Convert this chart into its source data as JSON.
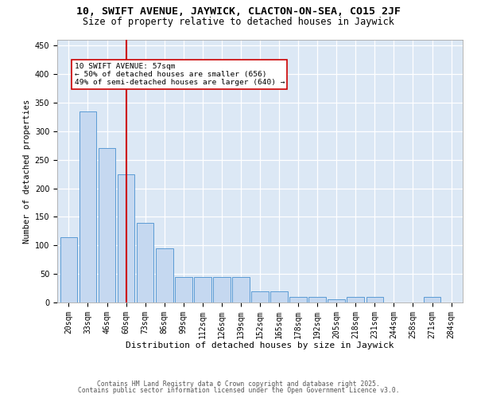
{
  "title1": "10, SWIFT AVENUE, JAYWICK, CLACTON-ON-SEA, CO15 2JF",
  "title2": "Size of property relative to detached houses in Jaywick",
  "xlabel": "Distribution of detached houses by size in Jaywick",
  "ylabel": "Number of detached properties",
  "categories": [
    "20sqm",
    "33sqm",
    "46sqm",
    "60sqm",
    "73sqm",
    "86sqm",
    "99sqm",
    "112sqm",
    "126sqm",
    "139sqm",
    "152sqm",
    "165sqm",
    "178sqm",
    "192sqm",
    "205sqm",
    "218sqm",
    "231sqm",
    "244sqm",
    "258sqm",
    "271sqm",
    "284sqm"
  ],
  "values": [
    115,
    335,
    270,
    225,
    140,
    95,
    45,
    45,
    45,
    45,
    20,
    20,
    10,
    10,
    5,
    10,
    10,
    0,
    0,
    10,
    0
  ],
  "bar_color": "#c5d8f0",
  "bar_edge_color": "#5b9bd5",
  "vline_x_pos": 3.5,
  "vline_color": "#cc0000",
  "annotation_text": "10 SWIFT AVENUE: 57sqm\n← 50% of detached houses are smaller (656)\n49% of semi-detached houses are larger (640) →",
  "annotation_box_color": "#cc0000",
  "ylim": [
    0,
    460
  ],
  "yticks": [
    0,
    50,
    100,
    150,
    200,
    250,
    300,
    350,
    400,
    450
  ],
  "background_color": "#dce8f5",
  "footer1": "Contains HM Land Registry data © Crown copyright and database right 2025.",
  "footer2": "Contains public sector information licensed under the Open Government Licence v3.0.",
  "title1_fontsize": 9.5,
  "title2_fontsize": 8.5,
  "xlabel_fontsize": 8,
  "ylabel_fontsize": 7.5,
  "tick_fontsize": 7,
  "annotation_fontsize": 6.8,
  "footer_fontsize": 5.8
}
